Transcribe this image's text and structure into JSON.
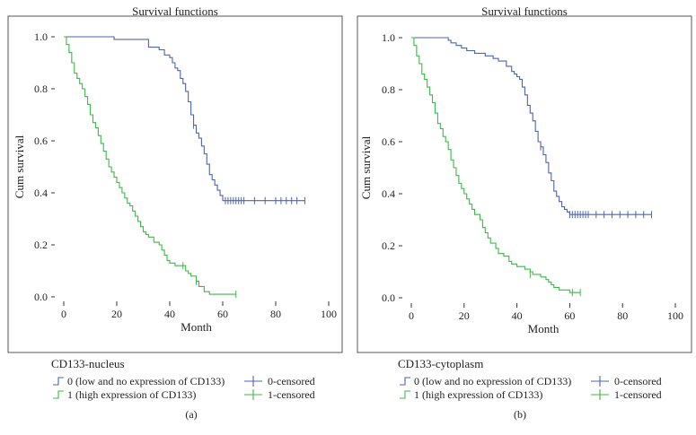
{
  "colors": {
    "group0": "#4a66b3",
    "group1": "#3fb84a"
  },
  "chart_data": [
    {
      "type": "line",
      "title": "Survival functions",
      "xlabel": "Month",
      "ylabel": "Cum survival",
      "xlim": [
        0,
        100
      ],
      "ylim": [
        0,
        1
      ],
      "xticks": [
        0,
        20,
        40,
        60,
        80,
        100
      ],
      "yticks": [
        0.0,
        0.2,
        0.4,
        0.6,
        0.8,
        1.0
      ],
      "xtick_labels": [
        "0",
        "20",
        "40",
        "60",
        "80",
        "100"
      ],
      "ytick_labels": [
        "0.0",
        "0.2",
        "0.4",
        "0.6",
        "0.8",
        "1.0"
      ],
      "legend_title": "CD133-nucleus",
      "panel_label": "(a)",
      "legend": {
        "s0": "0 (low and no expression of CD133)",
        "s1": "1 (high expression of CD133)",
        "c0": "0-censored",
        "c1": "1-censored"
      },
      "series": [
        {
          "name": "0 (low and no expression of CD133)",
          "color_key": "group0",
          "steps": [
            [
              0,
              1.0
            ],
            [
              19,
              0.99
            ],
            [
              32,
              0.96
            ],
            [
              36,
              0.95
            ],
            [
              38,
              0.93
            ],
            [
              40,
              0.92
            ],
            [
              41,
              0.9
            ],
            [
              42,
              0.88
            ],
            [
              43,
              0.87
            ],
            [
              44,
              0.84
            ],
            [
              45,
              0.82
            ],
            [
              46,
              0.79
            ],
            [
              47,
              0.75
            ],
            [
              48,
              0.7
            ],
            [
              49,
              0.66
            ],
            [
              50,
              0.63
            ],
            [
              51,
              0.61
            ],
            [
              52,
              0.58
            ],
            [
              53,
              0.55
            ],
            [
              54,
              0.51
            ],
            [
              55,
              0.47
            ],
            [
              56,
              0.45
            ],
            [
              57,
              0.43
            ],
            [
              58,
              0.41
            ],
            [
              59,
              0.39
            ],
            [
              60,
              0.37
            ],
            [
              91,
              0.37
            ]
          ],
          "censored": [
            [
              49,
              0.66
            ],
            [
              61,
              0.37
            ],
            [
              62,
              0.37
            ],
            [
              63,
              0.37
            ],
            [
              64,
              0.37
            ],
            [
              65,
              0.37
            ],
            [
              66,
              0.37
            ],
            [
              67,
              0.37
            ],
            [
              68,
              0.37
            ],
            [
              72,
              0.37
            ],
            [
              76,
              0.37
            ],
            [
              80,
              0.37
            ],
            [
              82,
              0.37
            ],
            [
              84,
              0.37
            ],
            [
              86,
              0.37
            ],
            [
              88,
              0.37
            ],
            [
              91,
              0.37
            ]
          ]
        },
        {
          "name": "1 (high expression of CD133)",
          "color_key": "group1",
          "steps": [
            [
              0,
              1.0
            ],
            [
              1,
              0.97
            ],
            [
              2,
              0.94
            ],
            [
              3,
              0.9
            ],
            [
              4,
              0.86
            ],
            [
              5,
              0.84
            ],
            [
              6,
              0.82
            ],
            [
              7,
              0.8
            ],
            [
              8,
              0.77
            ],
            [
              9,
              0.74
            ],
            [
              10,
              0.7
            ],
            [
              11,
              0.67
            ],
            [
              12,
              0.65
            ],
            [
              13,
              0.62
            ],
            [
              14,
              0.59
            ],
            [
              15,
              0.56
            ],
            [
              16,
              0.53
            ],
            [
              17,
              0.5
            ],
            [
              18,
              0.48
            ],
            [
              19,
              0.46
            ],
            [
              20,
              0.44
            ],
            [
              21,
              0.42
            ],
            [
              22,
              0.4
            ],
            [
              23,
              0.38
            ],
            [
              24,
              0.36
            ],
            [
              25,
              0.35
            ],
            [
              26,
              0.33
            ],
            [
              27,
              0.31
            ],
            [
              28,
              0.29
            ],
            [
              29,
              0.27
            ],
            [
              30,
              0.25
            ],
            [
              31,
              0.24
            ],
            [
              32,
              0.23
            ],
            [
              34,
              0.21
            ],
            [
              36,
              0.2
            ],
            [
              37,
              0.18
            ],
            [
              38,
              0.16
            ],
            [
              39,
              0.14
            ],
            [
              40,
              0.13
            ],
            [
              42,
              0.12
            ],
            [
              46,
              0.1
            ],
            [
              47,
              0.09
            ],
            [
              48,
              0.08
            ],
            [
              50,
              0.06
            ],
            [
              51,
              0.04
            ],
            [
              53,
              0.02
            ],
            [
              55,
              0.01
            ],
            [
              65,
              0.01
            ]
          ],
          "censored": [
            [
              45,
              0.12
            ],
            [
              50,
              0.06
            ],
            [
              65,
              0.01
            ]
          ]
        }
      ]
    },
    {
      "type": "line",
      "title": "Survival functions",
      "xlabel": "Month",
      "ylabel": "Cum survival",
      "xlim": [
        0,
        100
      ],
      "ylim": [
        0,
        1
      ],
      "xticks": [
        0,
        20,
        40,
        60,
        80,
        100
      ],
      "yticks": [
        0.0,
        0.2,
        0.4,
        0.6,
        0.8,
        1.0
      ],
      "xtick_labels": [
        "0",
        "20",
        "40",
        "60",
        "80",
        "100"
      ],
      "ytick_labels": [
        "0.0",
        "0.2",
        "0.4",
        "0.6",
        "0.8",
        "1.0"
      ],
      "legend_title": "CD133-cytoplasm",
      "panel_label": "(b)",
      "legend": {
        "s0": "0 (low and no expression of CD133)",
        "s1": "1 (high expression of CD133)",
        "c0": "0-censored",
        "c1": "1-censored"
      },
      "series": [
        {
          "name": "0 (low and no expression of CD133)",
          "color_key": "group0",
          "steps": [
            [
              0,
              1.0
            ],
            [
              14,
              0.99
            ],
            [
              15,
              0.98
            ],
            [
              17,
              0.97
            ],
            [
              19,
              0.96
            ],
            [
              21,
              0.95
            ],
            [
              24,
              0.94
            ],
            [
              28,
              0.93
            ],
            [
              31,
              0.92
            ],
            [
              33,
              0.91
            ],
            [
              36,
              0.89
            ],
            [
              38,
              0.87
            ],
            [
              39,
              0.86
            ],
            [
              40,
              0.85
            ],
            [
              41,
              0.84
            ],
            [
              42,
              0.81
            ],
            [
              43,
              0.78
            ],
            [
              44,
              0.74
            ],
            [
              45,
              0.71
            ],
            [
              46,
              0.68
            ],
            [
              47,
              0.64
            ],
            [
              48,
              0.6
            ],
            [
              49,
              0.58
            ],
            [
              50,
              0.55
            ],
            [
              51,
              0.52
            ],
            [
              52,
              0.48
            ],
            [
              53,
              0.45
            ],
            [
              54,
              0.41
            ],
            [
              55,
              0.39
            ],
            [
              56,
              0.37
            ],
            [
              57,
              0.35
            ],
            [
              58,
              0.34
            ],
            [
              59,
              0.33
            ],
            [
              60,
              0.32
            ],
            [
              91,
              0.32
            ]
          ],
          "censored": [
            [
              49,
              0.58
            ],
            [
              60,
              0.32
            ],
            [
              61,
              0.32
            ],
            [
              62,
              0.32
            ],
            [
              63,
              0.32
            ],
            [
              64,
              0.32
            ],
            [
              65,
              0.32
            ],
            [
              66,
              0.32
            ],
            [
              67,
              0.32
            ],
            [
              70,
              0.32
            ],
            [
              73,
              0.32
            ],
            [
              76,
              0.32
            ],
            [
              79,
              0.32
            ],
            [
              82,
              0.32
            ],
            [
              85,
              0.32
            ],
            [
              88,
              0.32
            ],
            [
              91,
              0.32
            ]
          ]
        },
        {
          "name": "1 (high expression of CD133)",
          "color_key": "group1",
          "steps": [
            [
              0,
              1.0
            ],
            [
              1,
              0.97
            ],
            [
              2,
              0.93
            ],
            [
              3,
              0.9
            ],
            [
              4,
              0.86
            ],
            [
              5,
              0.84
            ],
            [
              6,
              0.81
            ],
            [
              7,
              0.78
            ],
            [
              8,
              0.75
            ],
            [
              9,
              0.71
            ],
            [
              10,
              0.67
            ],
            [
              11,
              0.65
            ],
            [
              12,
              0.62
            ],
            [
              13,
              0.6
            ],
            [
              14,
              0.57
            ],
            [
              15,
              0.53
            ],
            [
              16,
              0.5
            ],
            [
              17,
              0.47
            ],
            [
              18,
              0.44
            ],
            [
              19,
              0.42
            ],
            [
              20,
              0.4
            ],
            [
              21,
              0.38
            ],
            [
              22,
              0.36
            ],
            [
              23,
              0.34
            ],
            [
              24,
              0.32
            ],
            [
              26,
              0.3
            ],
            [
              27,
              0.27
            ],
            [
              28,
              0.25
            ],
            [
              29,
              0.23
            ],
            [
              30,
              0.21
            ],
            [
              32,
              0.19
            ],
            [
              33,
              0.17
            ],
            [
              35,
              0.16
            ],
            [
              37,
              0.14
            ],
            [
              38,
              0.13
            ],
            [
              40,
              0.12
            ],
            [
              43,
              0.11
            ],
            [
              45,
              0.1
            ],
            [
              46,
              0.09
            ],
            [
              49,
              0.08
            ],
            [
              51,
              0.07
            ],
            [
              52,
              0.06
            ],
            [
              53,
              0.05
            ],
            [
              54,
              0.04
            ],
            [
              56,
              0.03
            ],
            [
              60,
              0.02
            ],
            [
              64,
              0.02
            ]
          ],
          "censored": [
            [
              45,
              0.09
            ],
            [
              61,
              0.02
            ],
            [
              64,
              0.02
            ]
          ]
        }
      ]
    }
  ]
}
